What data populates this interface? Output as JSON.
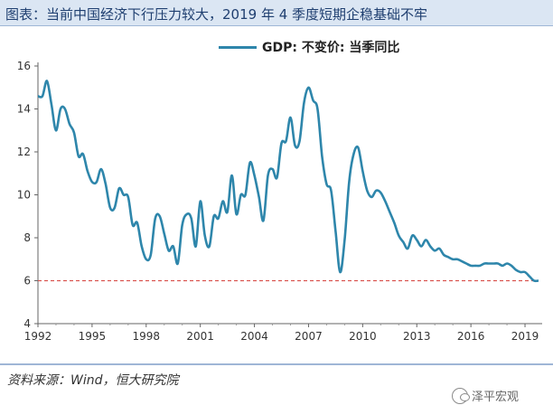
{
  "header": {
    "title": "图表：当前中国经济下行压力较大，2019 年 4 季度短期企稳基础不牢"
  },
  "footer": {
    "source": "资料来源：Wind，恒大研究院",
    "watermark_text": "泽平宏观",
    "watermark_icon": "wechat-icon"
  },
  "chart_data": {
    "type": "line",
    "title": "",
    "xlabel": "",
    "ylabel": "",
    "xlim": [
      1992,
      2019.75
    ],
    "ylim": [
      4,
      16
    ],
    "yticks": [
      4,
      6,
      8,
      10,
      12,
      14,
      16
    ],
    "xticks": [
      1992,
      1995,
      1998,
      2001,
      2004,
      2007,
      2010,
      2013,
      2016,
      2019
    ],
    "grid": false,
    "legend_position": "top-center",
    "series": [
      {
        "name": "GDP: 不变价: 当季同比",
        "color": "#2e86ab",
        "points": [
          [
            1992.0,
            14.6
          ],
          [
            1992.25,
            14.6
          ],
          [
            1992.5,
            15.3
          ],
          [
            1992.75,
            14.2
          ],
          [
            1993.0,
            13.0
          ],
          [
            1993.25,
            14.0
          ],
          [
            1993.5,
            14.0
          ],
          [
            1993.75,
            13.3
          ],
          [
            1994.0,
            12.9
          ],
          [
            1994.25,
            11.8
          ],
          [
            1994.5,
            11.9
          ],
          [
            1994.75,
            11.1
          ],
          [
            1995.0,
            10.6
          ],
          [
            1995.25,
            10.6
          ],
          [
            1995.5,
            11.2
          ],
          [
            1995.75,
            10.5
          ],
          [
            1996.0,
            9.4
          ],
          [
            1996.25,
            9.4
          ],
          [
            1996.5,
            10.3
          ],
          [
            1996.75,
            10.0
          ],
          [
            1997.0,
            9.9
          ],
          [
            1997.25,
            8.6
          ],
          [
            1997.5,
            8.7
          ],
          [
            1997.75,
            7.6
          ],
          [
            1998.0,
            7.0
          ],
          [
            1998.25,
            7.2
          ],
          [
            1998.5,
            8.9
          ],
          [
            1998.75,
            9.0
          ],
          [
            1999.0,
            8.2
          ],
          [
            1999.25,
            7.4
          ],
          [
            1999.5,
            7.6
          ],
          [
            1999.75,
            6.8
          ],
          [
            2000.0,
            8.6
          ],
          [
            2000.25,
            9.1
          ],
          [
            2000.5,
            8.9
          ],
          [
            2000.75,
            7.6
          ],
          [
            2001.0,
            9.7
          ],
          [
            2001.25,
            8.1
          ],
          [
            2001.5,
            7.6
          ],
          [
            2001.75,
            9.0
          ],
          [
            2002.0,
            8.9
          ],
          [
            2002.25,
            9.7
          ],
          [
            2002.5,
            9.2
          ],
          [
            2002.75,
            10.9
          ],
          [
            2003.0,
            9.1
          ],
          [
            2003.25,
            10.0
          ],
          [
            2003.5,
            10.0
          ],
          [
            2003.75,
            11.5
          ],
          [
            2004.0,
            10.9
          ],
          [
            2004.25,
            9.9
          ],
          [
            2004.5,
            8.8
          ],
          [
            2004.75,
            10.9
          ],
          [
            2005.0,
            11.2
          ],
          [
            2005.25,
            10.8
          ],
          [
            2005.5,
            12.4
          ],
          [
            2005.75,
            12.5
          ],
          [
            2006.0,
            13.6
          ],
          [
            2006.25,
            12.3
          ],
          [
            2006.5,
            12.5
          ],
          [
            2006.75,
            14.3
          ],
          [
            2007.0,
            15.0
          ],
          [
            2007.25,
            14.4
          ],
          [
            2007.5,
            14.0
          ],
          [
            2007.75,
            11.8
          ],
          [
            2008.0,
            10.5
          ],
          [
            2008.25,
            10.2
          ],
          [
            2008.5,
            8.3
          ],
          [
            2008.75,
            6.4
          ],
          [
            2009.0,
            7.9
          ],
          [
            2009.25,
            10.6
          ],
          [
            2009.5,
            11.9
          ],
          [
            2009.75,
            12.2
          ],
          [
            2010.0,
            11.1
          ],
          [
            2010.25,
            10.2
          ],
          [
            2010.5,
            9.9
          ],
          [
            2010.75,
            10.2
          ],
          [
            2011.0,
            10.1
          ],
          [
            2011.25,
            9.7
          ],
          [
            2011.5,
            9.2
          ],
          [
            2011.75,
            8.7
          ],
          [
            2012.0,
            8.1
          ],
          [
            2012.25,
            7.8
          ],
          [
            2012.5,
            7.5
          ],
          [
            2012.75,
            8.1
          ],
          [
            2013.0,
            7.9
          ],
          [
            2013.25,
            7.6
          ],
          [
            2013.5,
            7.9
          ],
          [
            2013.75,
            7.6
          ],
          [
            2014.0,
            7.4
          ],
          [
            2014.25,
            7.5
          ],
          [
            2014.5,
            7.2
          ],
          [
            2014.75,
            7.1
          ],
          [
            2015.0,
            7.0
          ],
          [
            2015.25,
            7.0
          ],
          [
            2015.5,
            6.9
          ],
          [
            2015.75,
            6.8
          ],
          [
            2016.0,
            6.7
          ],
          [
            2016.25,
            6.7
          ],
          [
            2016.5,
            6.7
          ],
          [
            2016.75,
            6.8
          ],
          [
            2017.0,
            6.8
          ],
          [
            2017.25,
            6.8
          ],
          [
            2017.5,
            6.8
          ],
          [
            2017.75,
            6.7
          ],
          [
            2018.0,
            6.8
          ],
          [
            2018.25,
            6.7
          ],
          [
            2018.5,
            6.5
          ],
          [
            2018.75,
            6.4
          ],
          [
            2019.0,
            6.4
          ],
          [
            2019.25,
            6.2
          ],
          [
            2019.5,
            6.0
          ],
          [
            2019.75,
            6.0
          ]
        ]
      }
    ],
    "reference_line": {
      "y": 6,
      "color": "#d9534f",
      "style": "dashed"
    }
  }
}
